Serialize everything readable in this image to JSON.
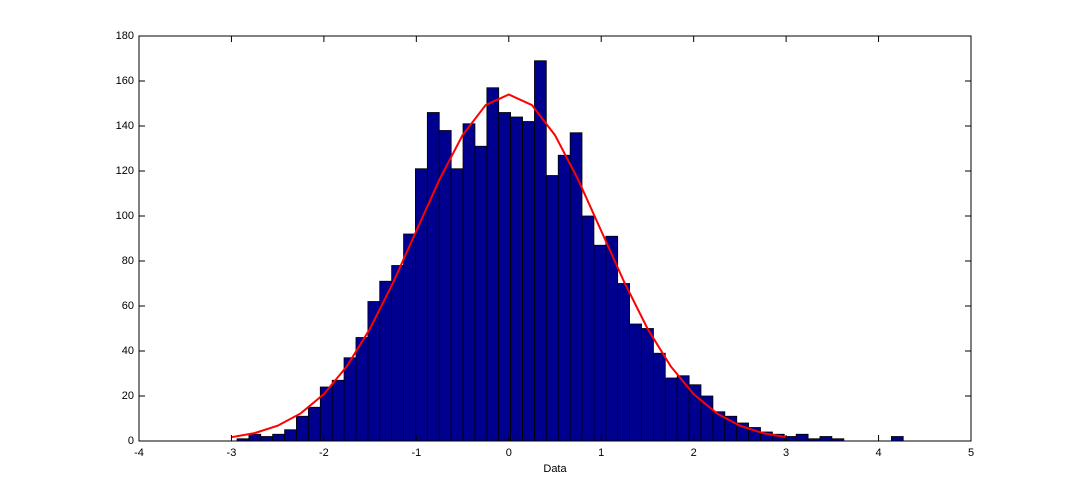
{
  "chart_data": {
    "type": "histogram",
    "xlabel": "Data",
    "bins": [
      -2.94,
      -2.811,
      -2.683,
      -2.554,
      -2.425,
      -2.297,
      -2.168,
      -2.039,
      -1.91,
      -1.782,
      -1.653,
      -1.524,
      -1.396,
      -1.267,
      -1.138,
      -1.01,
      -0.881,
      -0.752,
      -0.623,
      -0.495,
      -0.366,
      -0.237,
      -0.109,
      0.02,
      0.149,
      0.278,
      0.406,
      0.535,
      0.664,
      0.792,
      0.921,
      1.05,
      1.178,
      1.307,
      1.436,
      1.565,
      1.693,
      1.822,
      1.951,
      2.079,
      2.208,
      2.337,
      2.466,
      2.594,
      2.723,
      2.852,
      2.98,
      3.109,
      3.238,
      3.366,
      3.495,
      3.624,
      3.753,
      3.881,
      4.01,
      4.139,
      4.267
    ],
    "values": [
      1,
      3,
      2,
      3,
      5,
      11,
      15,
      24,
      27,
      37,
      46,
      62,
      71,
      78,
      92,
      121,
      146,
      138,
      121,
      141,
      131,
      157,
      146,
      144,
      142,
      169,
      118,
      127,
      137,
      100,
      87,
      91,
      70,
      52,
      50,
      39,
      28,
      29,
      25,
      20,
      13,
      11,
      8,
      6,
      4,
      3,
      2,
      3,
      1,
      2,
      1,
      0,
      0,
      0,
      0,
      2
    ],
    "color": "#00008f",
    "edge_color": "#000000",
    "fit": {
      "type": "line",
      "color": "#ff0000",
      "x": [
        -3,
        -2.75,
        -2.5,
        -2.25,
        -2,
        -1.75,
        -1.5,
        -1.25,
        -1,
        -0.75,
        -0.5,
        -0.25,
        0,
        0.25,
        0.5,
        0.75,
        1,
        1.25,
        1.5,
        1.75,
        2,
        2.25,
        2.5,
        2.75,
        3
      ],
      "values": [
        1.7,
        3.5,
        6.8,
        12.3,
        20.8,
        33.3,
        50.0,
        70.5,
        93.4,
        116.2,
        135.9,
        149.3,
        154,
        149.3,
        135.9,
        116.2,
        93.4,
        70.5,
        50.0,
        33.3,
        20.8,
        12.3,
        6.8,
        3.5,
        1.7
      ]
    },
    "xlim": [
      -4,
      5
    ],
    "ylim": [
      0,
      180
    ],
    "xticks": [
      -4,
      -3,
      -2,
      -1,
      0,
      1,
      2,
      3,
      4,
      5
    ],
    "yticks": [
      0,
      20,
      40,
      60,
      80,
      100,
      120,
      140,
      160,
      180
    ],
    "grid": false
  }
}
